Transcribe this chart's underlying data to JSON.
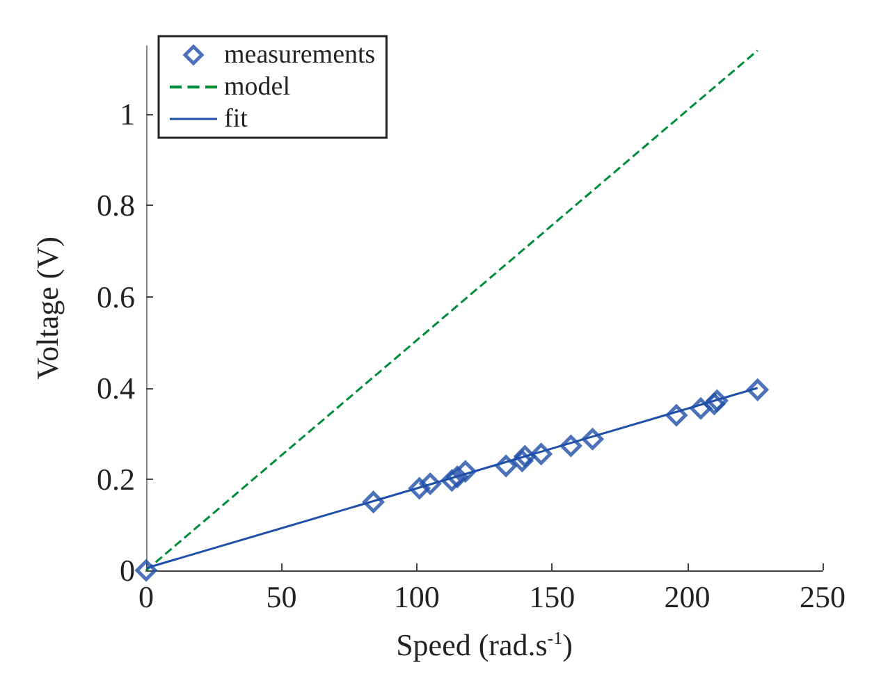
{
  "chart_data": {
    "type": "scatter",
    "xlabel": "Speed (rad.s$^{-1}$)",
    "ylabel": "Voltage (V)",
    "xlim": [
      0,
      250
    ],
    "xticks": [
      0,
      50,
      100,
      150,
      200,
      250
    ],
    "ylim": [
      0,
      1.15
    ],
    "yticks": [
      0,
      0.2,
      0.4,
      0.6,
      0.8,
      1
    ],
    "grid": false,
    "legend": "top left",
    "series": [
      {
        "name": "measurements",
        "color": "#1f4fa8",
        "marker": "diamond",
        "x": [
          0,
          84,
          101,
          105,
          113,
          115,
          118,
          133,
          139,
          140,
          146,
          157,
          165,
          196,
          205,
          210,
          211,
          226
        ],
        "values": [
          0,
          0.15,
          0.18,
          0.19,
          0.197,
          0.205,
          0.217,
          0.229,
          0.24,
          0.25,
          0.255,
          0.273,
          0.288,
          0.34,
          0.355,
          0.365,
          0.372,
          0.396
        ]
      },
      {
        "name": "model",
        "type": "line",
        "color": "#008c3a",
        "line_style": "dashed",
        "marker": "none",
        "x": [
          0,
          226
        ],
        "values": [
          0,
          1.14
        ]
      },
      {
        "name": "fit",
        "type": "line",
        "color": "#1f4fa8",
        "line_style": "solid",
        "marker": "none",
        "x": [
          0,
          226
        ],
        "values": [
          0.005,
          0.4
        ]
      }
    ]
  }
}
